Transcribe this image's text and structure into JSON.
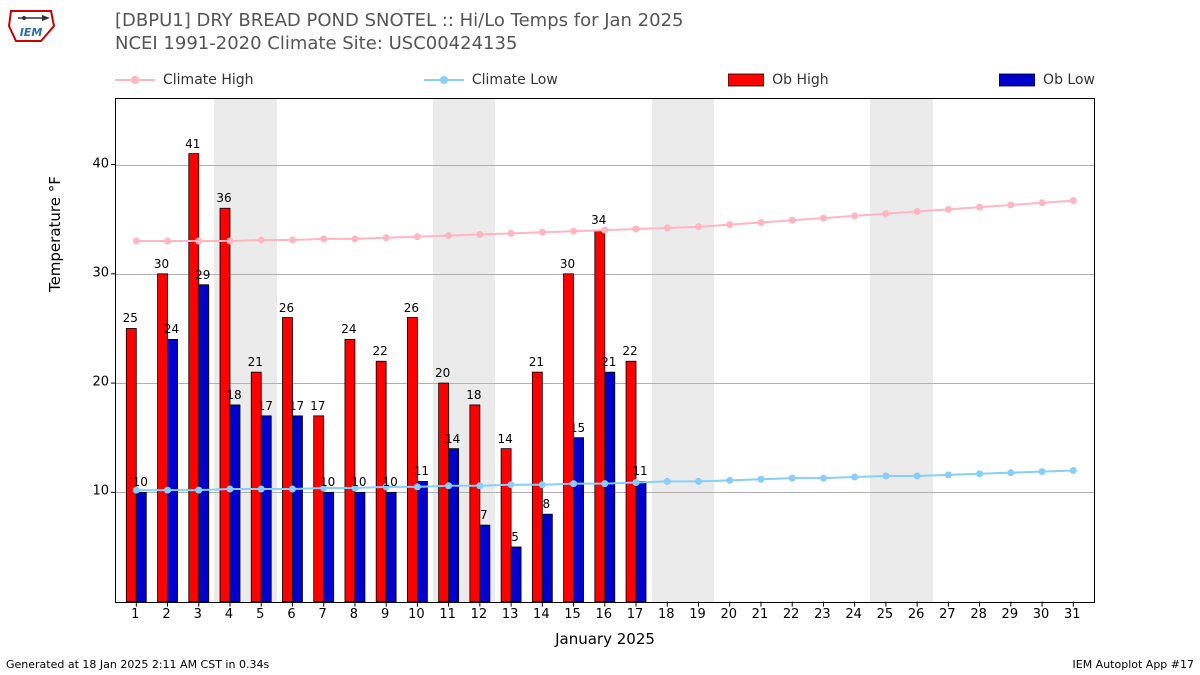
{
  "title_line1": "[DBPU1] DRY BREAD POND SNOTEL :: Hi/Lo Temps for Jan 2025",
  "title_line2": "NCEI 1991-2020 Climate Site: USC00424135",
  "ylabel": "Temperature °F",
  "xlabel": "January 2025",
  "footer_left": "Generated at 18 Jan 2025 2:11 AM CST in 0.34s",
  "footer_right": "IEM Autoplot App #17",
  "legend": {
    "climate_high": "Climate High",
    "climate_low": "Climate Low",
    "ob_high": "Ob High",
    "ob_low": "Ob Low"
  },
  "chart": {
    "type": "bar+line",
    "days": [
      1,
      2,
      3,
      4,
      5,
      6,
      7,
      8,
      9,
      10,
      11,
      12,
      13,
      14,
      15,
      16,
      17,
      18,
      19,
      20,
      21,
      22,
      23,
      24,
      25,
      26,
      27,
      28,
      29,
      30,
      31
    ],
    "x_min": 0.35,
    "x_max": 31.65,
    "ylim": [
      0,
      46
    ],
    "yticks": [
      10,
      20,
      30,
      40
    ],
    "weekend_days": [
      4,
      5,
      11,
      12,
      18,
      19,
      25,
      26
    ],
    "ob_high": [
      25,
      30,
      41,
      36,
      21,
      26,
      17,
      24,
      22,
      26,
      20,
      18,
      14,
      21,
      30,
      34,
      22
    ],
    "ob_low": [
      10,
      24,
      29,
      18,
      17,
      17,
      10,
      10,
      10,
      11,
      14,
      7,
      5,
      8,
      15,
      21,
      11
    ],
    "climate_high": [
      33.0,
      33.0,
      33.0,
      33.0,
      33.1,
      33.1,
      33.2,
      33.2,
      33.3,
      33.4,
      33.5,
      33.6,
      33.7,
      33.8,
      33.9,
      34.0,
      34.1,
      34.2,
      34.3,
      34.5,
      34.7,
      34.9,
      35.1,
      35.3,
      35.5,
      35.7,
      35.9,
      36.1,
      36.3,
      36.5,
      36.7
    ],
    "climate_low": [
      10.2,
      10.2,
      10.2,
      10.3,
      10.3,
      10.3,
      10.4,
      10.4,
      10.5,
      10.5,
      10.6,
      10.6,
      10.7,
      10.7,
      10.8,
      10.8,
      10.9,
      11.0,
      11.0,
      11.1,
      11.2,
      11.3,
      11.3,
      11.4,
      11.5,
      11.5,
      11.6,
      11.7,
      11.8,
      11.9,
      12.0
    ],
    "colors": {
      "ob_high": "#ff0000",
      "ob_low": "#0000cc",
      "climate_high": "#ffb6c1",
      "climate_low": "#87cefa",
      "grid": "#b0b0b0",
      "weekend_band": "#ebebeb",
      "background": "#ffffff",
      "border": "#000000"
    },
    "bar_half_width_days": 0.32,
    "line_marker_radius": 3.5,
    "line_width": 2,
    "title_fontsize": 18,
    "label_fontsize": 15,
    "tick_fontsize": 13,
    "barlabel_fontsize": 12
  }
}
